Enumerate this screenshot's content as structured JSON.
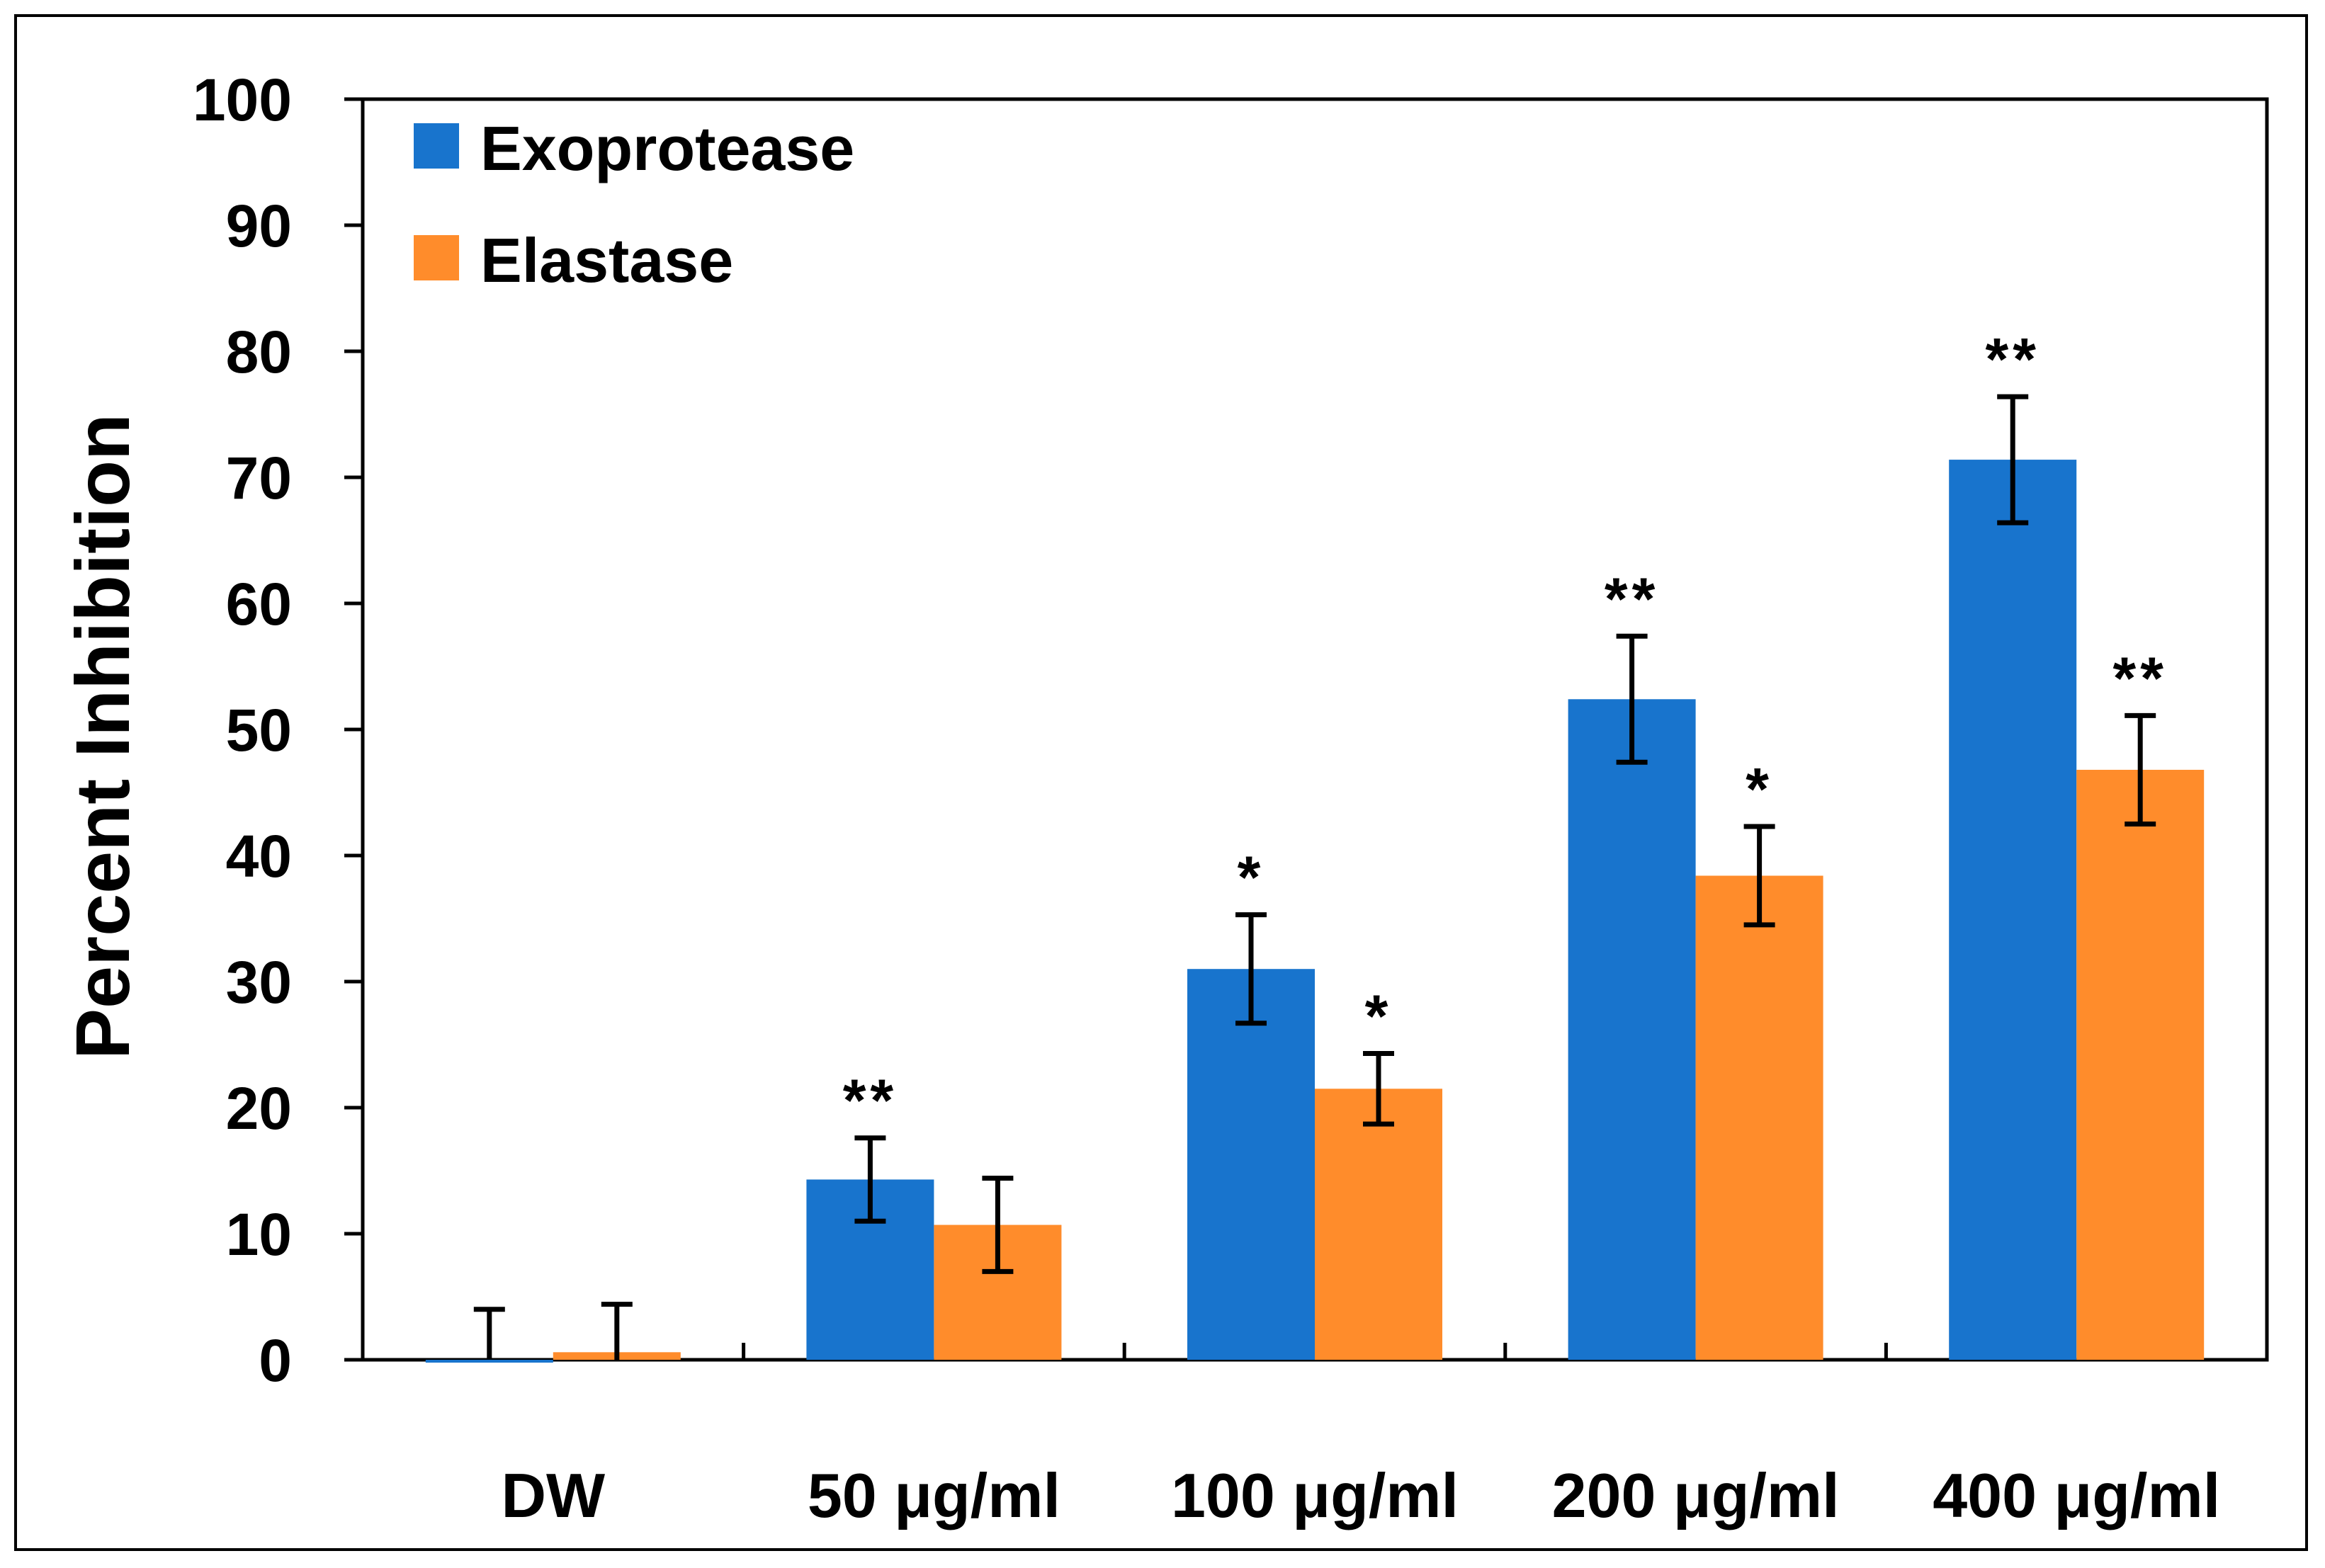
{
  "chart_data": {
    "type": "bar",
    "title": "",
    "xlabel": "",
    "ylabel": "Percent Inhibition",
    "ylim": [
      0,
      100
    ],
    "yticks": [
      0,
      10,
      20,
      30,
      40,
      50,
      60,
      70,
      80,
      90,
      100
    ],
    "categories": [
      "DW",
      "50 μg/ml",
      "100 μg/ml",
      "200 μg/ml",
      "400 μg/ml"
    ],
    "legend_position": "top-left",
    "grid": false,
    "series": [
      {
        "name": "Exoprotease",
        "color": "#1874CD",
        "values": [
          0,
          14.3,
          31.0,
          52.4,
          71.4
        ],
        "errors": [
          4.0,
          3.3,
          4.3,
          5.0,
          5.0
        ],
        "significance": [
          "",
          "**",
          "*",
          "**",
          "**"
        ]
      },
      {
        "name": "Elastase",
        "color": "#FF8C2B",
        "values": [
          0.6,
          10.7,
          21.5,
          38.4,
          46.8
        ],
        "errors": [
          3.8,
          3.7,
          2.8,
          3.9,
          4.3
        ],
        "significance": [
          "",
          "",
          "*",
          "*",
          "**"
        ]
      }
    ]
  }
}
